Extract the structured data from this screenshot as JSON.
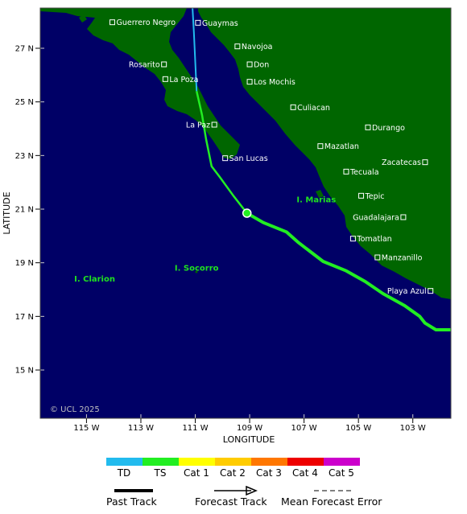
{
  "map": {
    "xlabel": "LONGITUDE",
    "ylabel": "LATITUDE",
    "x_ticks": [
      "115 W",
      "113 W",
      "111 W",
      "109 W",
      "107 W",
      "105 W",
      "103 W"
    ],
    "y_ticks": [
      "27 N",
      "25 N",
      "23 N",
      "21 N",
      "19 N",
      "17 N",
      "15 N"
    ],
    "lon_range": [
      -116.7,
      -101.6
    ],
    "lat_range": [
      13.2,
      28.5
    ],
    "copyright": "© UCL 2025",
    "colors": {
      "ocean": "#000066",
      "land": "#006600",
      "track_ts": "#22ee22",
      "track_td": "#22bbee",
      "city_marker": "#ffffff"
    }
  },
  "cities": [
    {
      "name": "Guerrero Negro",
      "lon": -114.05,
      "lat": 27.97
    },
    {
      "name": "Guaymas",
      "lon": -110.9,
      "lat": 27.95
    },
    {
      "name": "Navojoa",
      "lon": -109.45,
      "lat": 27.07
    },
    {
      "name": "Rosarito",
      "lon": -112.15,
      "lat": 26.4
    },
    {
      "name": "Don",
      "lon": -109.0,
      "lat": 26.4
    },
    {
      "name": "La Poza",
      "lon": -112.1,
      "lat": 25.85
    },
    {
      "name": "Los Mochis",
      "lon": -109.0,
      "lat": 25.75
    },
    {
      "name": "Culiacan",
      "lon": -107.4,
      "lat": 24.8
    },
    {
      "name": "La Paz",
      "lon": -110.3,
      "lat": 24.15
    },
    {
      "name": "Durango",
      "lon": -104.65,
      "lat": 24.05
    },
    {
      "name": "Mazatlan",
      "lon": -106.4,
      "lat": 23.35
    },
    {
      "name": "San Lucas",
      "lon": -109.9,
      "lat": 22.9
    },
    {
      "name": "Zacatecas",
      "lon": -102.55,
      "lat": 22.75
    },
    {
      "name": "Tecuala",
      "lon": -105.45,
      "lat": 22.4
    },
    {
      "name": "Tepic",
      "lon": -104.9,
      "lat": 21.5
    },
    {
      "name": "Guadalajara",
      "lon": -103.35,
      "lat": 20.7
    },
    {
      "name": "Tomatlan",
      "lon": -105.2,
      "lat": 19.9
    },
    {
      "name": "Manzanillo",
      "lon": -104.3,
      "lat": 19.2
    },
    {
      "name": "Playa Azul",
      "lon": -102.35,
      "lat": 17.95
    }
  ],
  "islands": [
    {
      "name": "I. Marias",
      "lon": -106.55,
      "lat": 21.25
    },
    {
      "name": "I. Socorro",
      "lon": -110.95,
      "lat": 18.7
    },
    {
      "name": "I. Clarion",
      "lon": -114.7,
      "lat": 18.3
    }
  ],
  "track": {
    "past_ts": [
      [
        -101.6,
        16.5
      ],
      [
        -102.15,
        16.5
      ],
      [
        -102.55,
        16.75
      ],
      [
        -102.75,
        17.0
      ],
      [
        -103.3,
        17.4
      ],
      [
        -104.1,
        17.85
      ],
      [
        -104.75,
        18.3
      ],
      [
        -105.45,
        18.7
      ],
      [
        -106.3,
        19.05
      ],
      [
        -107.2,
        19.75
      ],
      [
        -107.65,
        20.15
      ],
      [
        -108.5,
        20.5
      ],
      [
        -109.1,
        20.85
      ]
    ],
    "forecast_ts": [
      [
        -109.1,
        20.85
      ],
      [
        -109.6,
        21.5
      ],
      [
        -110.1,
        22.2
      ],
      [
        -110.4,
        22.6
      ],
      [
        -110.6,
        23.6
      ],
      [
        -110.75,
        24.5
      ],
      [
        -110.95,
        25.4
      ]
    ],
    "forecast_td": [
      [
        -110.95,
        25.4
      ],
      [
        -111.05,
        27.6
      ],
      [
        -111.1,
        28.5
      ]
    ],
    "current_position": [
      -109.1,
      20.85
    ]
  },
  "legend": {
    "categories": [
      {
        "label": "TD",
        "color": "#22bbee"
      },
      {
        "label": "TS",
        "color": "#22ee22"
      },
      {
        "label": "Cat 1",
        "color": "#ffff00"
      },
      {
        "label": "Cat 2",
        "color": "#ffcc00"
      },
      {
        "label": "Cat 3",
        "color": "#ff7700"
      },
      {
        "label": "Cat 4",
        "color": "#ee0000"
      },
      {
        "label": "Cat 5",
        "color": "#cc00cc"
      }
    ],
    "past_track_label": "Past Track",
    "forecast_track_label": "Forecast Track",
    "mean_error_label": "Mean Forecast Error"
  }
}
